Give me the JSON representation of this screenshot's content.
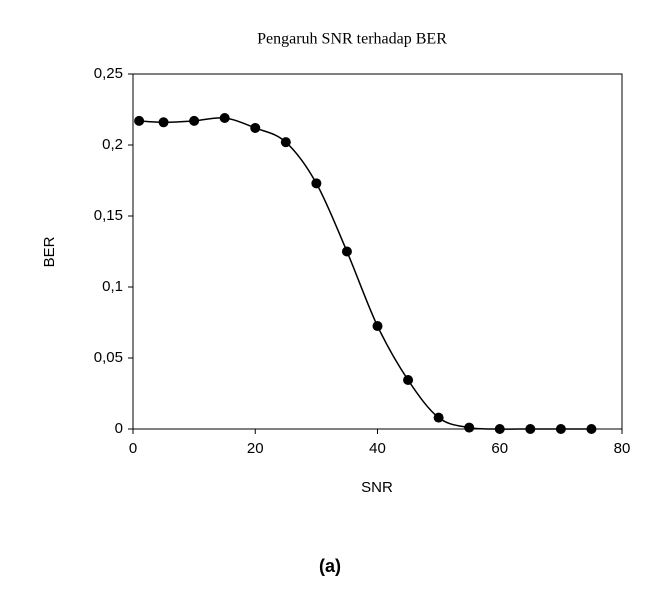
{
  "chart_data": {
    "type": "line",
    "title": "Pengaruh SNR terhadap BER",
    "x_label": "SNR",
    "y_label": "BER",
    "caption": "(a)",
    "x": [
      1,
      5,
      10,
      15,
      20,
      25,
      30,
      35,
      40,
      45,
      50,
      55,
      60,
      65,
      70,
      75
    ],
    "values": [
      0.217,
      0.216,
      0.217,
      0.219,
      0.212,
      0.202,
      0.173,
      0.125,
      0.0725,
      0.0345,
      0.008,
      0.001,
      0,
      0,
      0,
      0
    ],
    "color": "#000000",
    "smooth": true,
    "markers": true,
    "xlim": [
      0,
      80
    ],
    "xticks": [
      0,
      20,
      40,
      60,
      80
    ],
    "ylim": [
      0,
      0.25
    ],
    "yticks": [
      0,
      {
        "value": 0.05,
        "label": "0,05"
      },
      {
        "value": 0.1,
        "label": "0,1"
      },
      {
        "value": 0.15,
        "label": "0,15"
      },
      {
        "value": 0.2,
        "label": "0,2"
      },
      {
        "value": 0.25,
        "label": "0,25"
      }
    ],
    "grid": false
  }
}
